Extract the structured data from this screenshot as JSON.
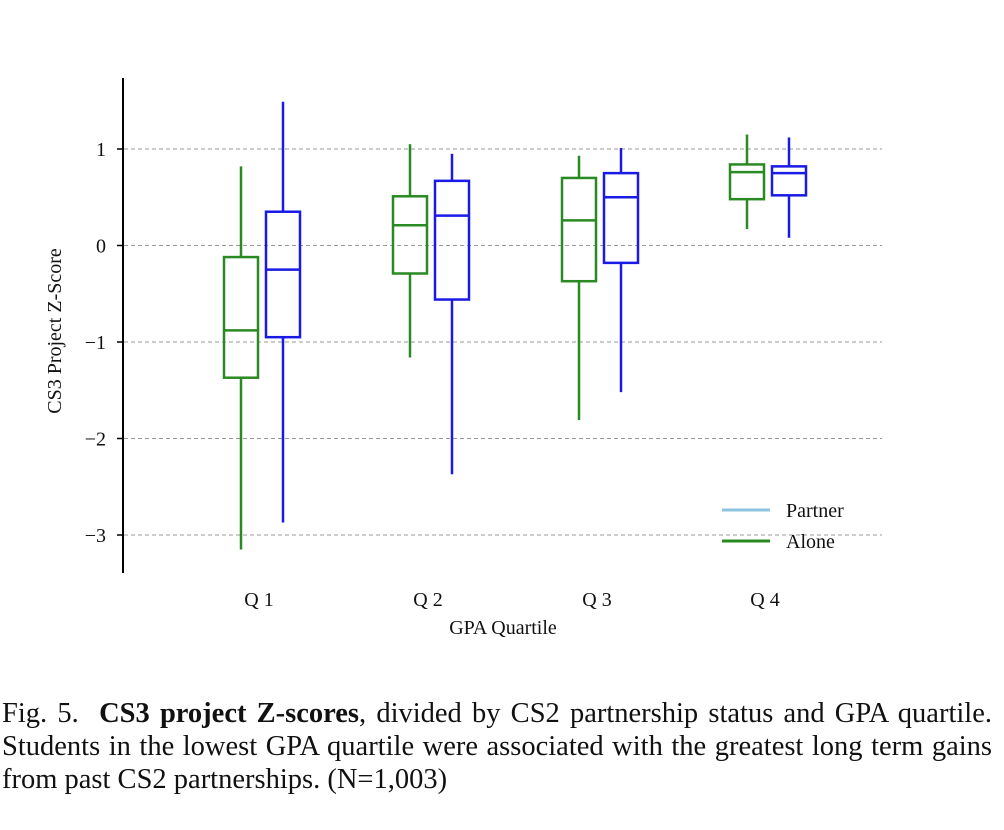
{
  "chart_data": {
    "type": "box",
    "title": "",
    "xlabel": "GPA Quartile",
    "ylabel": "CS3 Project Z-Score",
    "ylim": [
      -3.4,
      1.75
    ],
    "yticks": [
      1,
      0,
      -1,
      -2,
      -3
    ],
    "ytick_labels": [
      "1",
      "0",
      "−1",
      "−2",
      "−3"
    ],
    "grid": "horizontal dashed",
    "categories": [
      "Q 1",
      "Q 2",
      "Q 3",
      "Q 4"
    ],
    "legend": {
      "placement": "lower-right",
      "entries": [
        {
          "label": "Partner",
          "color": "#8ec4e0"
        },
        {
          "label": "Alone",
          "color": "#2a8a22"
        }
      ]
    },
    "series": [
      {
        "color": "#2a8a22",
        "boxes": [
          {
            "category": "Q 1",
            "whisker_low": -3.15,
            "q1": -1.37,
            "median": -0.88,
            "q3": -0.12,
            "whisker_high": 0.82
          },
          {
            "category": "Q 2",
            "whisker_low": -1.16,
            "q1": -0.29,
            "median": 0.21,
            "q3": 0.51,
            "whisker_high": 1.05
          },
          {
            "category": "Q 3",
            "whisker_low": -1.81,
            "q1": -0.37,
            "median": 0.26,
            "q3": 0.7,
            "whisker_high": 0.93
          },
          {
            "category": "Q 4",
            "whisker_low": 0.17,
            "q1": 0.48,
            "median": 0.76,
            "q3": 0.84,
            "whisker_high": 1.15
          }
        ]
      },
      {
        "color": "#1a1ae6",
        "boxes": [
          {
            "category": "Q 1",
            "whisker_low": -2.87,
            "q1": -0.95,
            "median": -0.25,
            "q3": 0.35,
            "whisker_high": 1.49
          },
          {
            "category": "Q 2",
            "whisker_low": -2.37,
            "q1": -0.56,
            "median": 0.31,
            "q3": 0.67,
            "whisker_high": 0.95
          },
          {
            "category": "Q 3",
            "whisker_low": -1.52,
            "q1": -0.18,
            "median": 0.5,
            "q3": 0.75,
            "whisker_high": 1.01
          },
          {
            "category": "Q 4",
            "whisker_low": 0.08,
            "q1": 0.52,
            "median": 0.75,
            "q3": 0.82,
            "whisker_high": 1.12
          }
        ]
      }
    ]
  },
  "caption": {
    "fig_label": "Fig. 5.",
    "bold_title": "CS3 project Z-scores",
    "text": ", divided by CS2 partnership status and GPA quartile. Students in the lowest GPA quartile were associated with the greatest long term gains from past CS2 partnerships. (N=1,003)"
  }
}
